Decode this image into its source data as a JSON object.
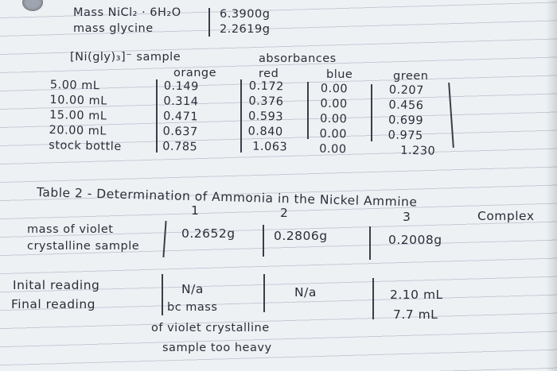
{
  "header": {
    "mass_nicl2_label": "Mass NiCl₂ · 6H₂O",
    "mass_nicl2_value": "6.3900g",
    "mass_glycine_label": "mass glycine",
    "mass_glycine_value": "2.2619g"
  },
  "table1": {
    "sample_label": "[Ni(gly)₃]⁻ sample",
    "absorbances_label": "absorbances",
    "columns": [
      "orange",
      "red",
      "blue",
      "green"
    ],
    "rows": [
      {
        "label": "5.00 mL",
        "orange": "0.149",
        "red": "0.172",
        "blue": "0.00",
        "green": "0.207"
      },
      {
        "label": "10.00 mL",
        "orange": "0.314",
        "red": "0.376",
        "blue": "0.00",
        "green": "0.456"
      },
      {
        "label": "15.00 mL",
        "orange": "0.471",
        "red": "0.593",
        "blue": "0.00",
        "green": "0.699"
      },
      {
        "label": "20.00 mL",
        "orange": "0.637",
        "red": "0.840",
        "blue": "0.00",
        "green": "0.975"
      },
      {
        "label": "stock bottle",
        "orange": "0.785",
        "red": "1.063",
        "blue": "0.00",
        "green": "1.230"
      }
    ]
  },
  "table2": {
    "title_line1": "Table 2 - Determination of Ammonia in the Nickel Ammine",
    "title_line2": "Complex",
    "trial_numbers": [
      "1",
      "2",
      "3"
    ],
    "mass_label_line1": "mass of violet",
    "mass_label_line2": "crystalline sample",
    "masses": [
      "0.2652g",
      "0.2806g",
      "0.2008g"
    ],
    "initial_label": "Inital reading",
    "final_label": "Final reading",
    "trial1_reading": "N/a",
    "trial2_reading": "N/a",
    "trial3_initial": "2.10 mL",
    "trial3_final": "7.7 mL",
    "note_line1": "bc mass",
    "note_line2": "of violet crystalline",
    "note_line3": "sample too heavy"
  }
}
